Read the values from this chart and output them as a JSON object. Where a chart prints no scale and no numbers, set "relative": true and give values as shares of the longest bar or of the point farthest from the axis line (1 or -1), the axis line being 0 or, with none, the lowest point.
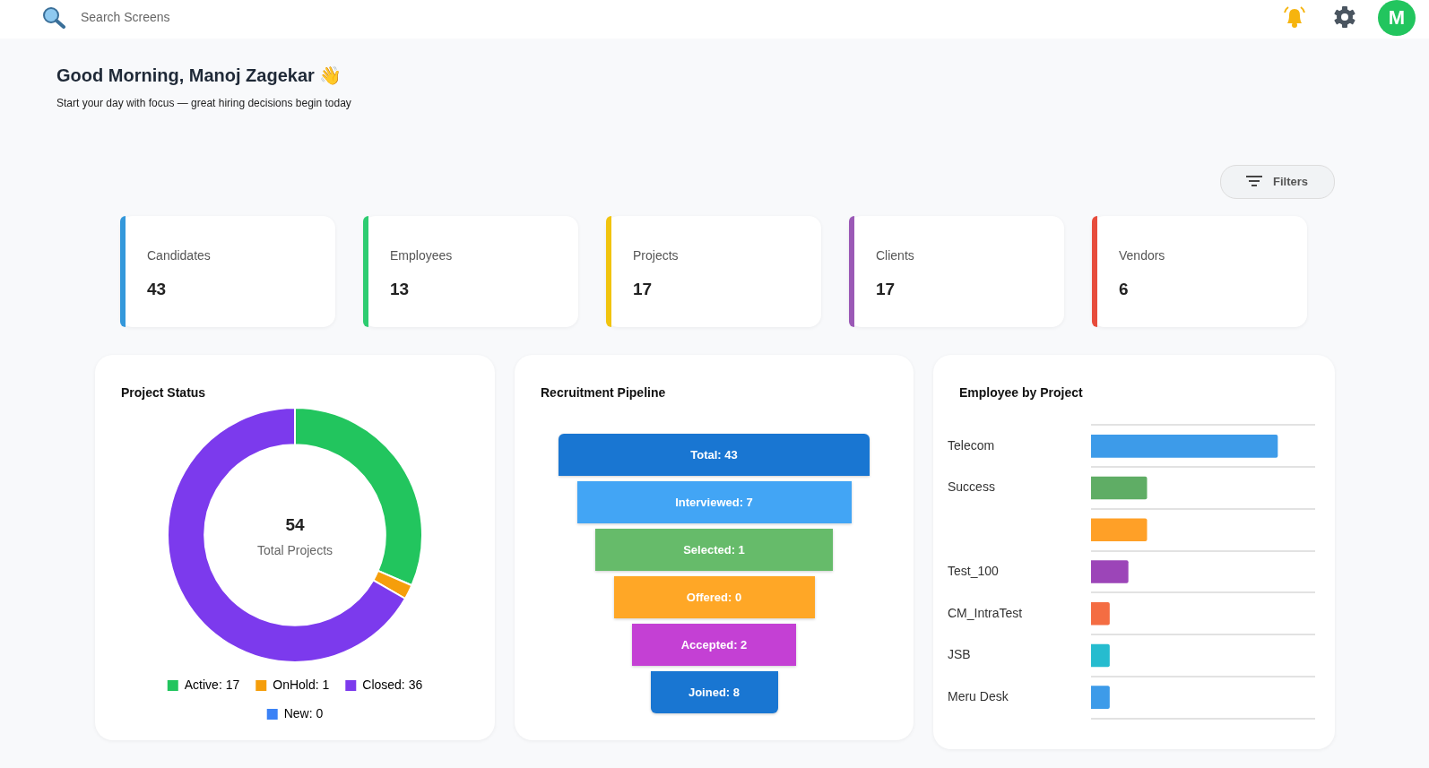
{
  "chart_data": [
    {
      "type": "other",
      "title": "Good Morning, Manoj Zagekar 👋",
      "subtitle": "Start your day with focus — great hiring decisions begin today",
      "annotations": [
        "Search Screens",
        "Filters",
        "M",
        "Candidates",
        "43",
        "Employees",
        "13",
        "Projects",
        "17",
        "Clients",
        "17",
        "Vendors",
        "6"
      ]
    },
    {
      "type": "donut",
      "title": "Project Status",
      "categories": [
        "Active: 17",
        "OnHold: 1",
        "Closed: 36",
        "New: 0"
      ],
      "values": [
        17,
        1,
        36,
        0
      ],
      "colors": [
        "#22c55e",
        "#f59e0b",
        "#7c3aed",
        "#3b82f6"
      ],
      "legend": "bottom",
      "annotations": [
        "54",
        "Total Projects"
      ]
    },
    {
      "type": "other",
      "title": "Recruitment Pipeline",
      "categories": [
        "Total: 43",
        "Interviewed: 7",
        "Selected: 1",
        "Offered: 0",
        "Accepted: 2",
        "Joined: 8"
      ],
      "colors": [
        "#1976d2",
        "#42a5f5",
        "#66bb6a",
        "#ffa726",
        "#c440d4",
        "#1976d2"
      ]
    },
    {
      "type": "bar",
      "title": "Employee by Project",
      "orientation": "horizontal",
      "relative": true,
      "grid": "y",
      "categories": [
        "Telecom",
        "Success",
        null,
        "Test_100",
        "CM_IntraTest",
        "JSB",
        "Meru Desk"
      ],
      "values": [
        1,
        0.3,
        0.3,
        0.2,
        0.1,
        0.1,
        0.1
      ],
      "colors": [
        "#3d9be9",
        "#5fad65",
        "#ffa027",
        "#9c45b8",
        "#f46d43",
        "#26bccf",
        "#3d9be9"
      ]
    }
  ]
}
